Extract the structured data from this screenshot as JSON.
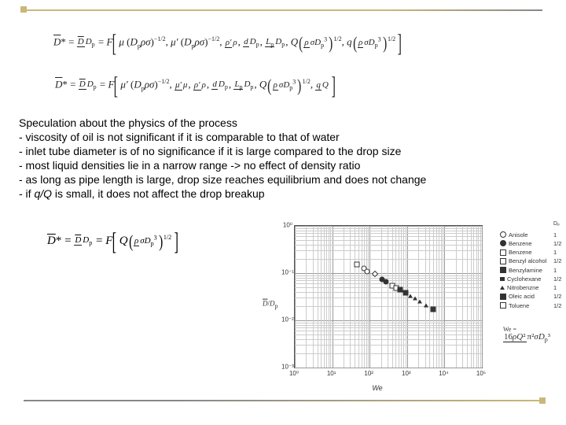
{
  "rules": {
    "top_color": "#c9b87a",
    "bottom_color": "#c9b87a"
  },
  "equations": {
    "eq1_lhs": "D̄* =",
    "eq2_lhs": "D̄* =",
    "eq3_lhs": "D̄* ="
  },
  "text": {
    "heading": "Speculation about the physics of the process",
    "l1": "- viscosity of oil is not significant if it is comparable to that of water",
    "l2": "- inlet tube diameter is of no significance if it is large compared to the drop size",
    "l3": "- most liquid densities lie in a narrow range -> no effect of density ratio",
    "l4": "  - as long as pipe length is large, drop size reaches equilibrium and does not change",
    "l5_a": "- if ",
    "l5_i": "q/Q",
    "l5_b": " is small, it does not affect the drop breakup"
  },
  "chart": {
    "type": "scatter",
    "xscale": "log",
    "yscale": "log",
    "xlim": [
      1,
      100000
    ],
    "ylim": [
      0.001,
      1
    ],
    "xticks": [
      1,
      10,
      100,
      1000,
      10000,
      100000
    ],
    "xtick_labels": [
      "10⁰",
      "10¹",
      "10²",
      "10³",
      "10⁴",
      "10⁵"
    ],
    "yticks": [
      0.001,
      0.01,
      0.1,
      1
    ],
    "ytick_labels": [
      "10⁻³",
      "10⁻²",
      "10⁻¹",
      "10⁰"
    ],
    "xlabel": "We",
    "ylabel": "D̄/Dₚ",
    "background_color": "#ffffff",
    "grid_color": "#999999",
    "minor_grid_color": "#cccccc",
    "series": [
      {
        "name": "Anisole",
        "symbol": "circle",
        "filled": false,
        "exp": "1",
        "points": [
          [
            70,
            0.125
          ],
          [
            85,
            0.11
          ]
        ]
      },
      {
        "name": "Benzene",
        "symbol": "circle",
        "filled": true,
        "exp": "1/2",
        "points": [
          [
            220,
            0.074
          ],
          [
            280,
            0.066
          ]
        ]
      },
      {
        "name": "Benzene",
        "symbol": "diamond",
        "filled": false,
        "exp": "1",
        "points": [
          [
            140,
            0.095
          ]
        ]
      },
      {
        "name": "Benzyl alcohol",
        "symbol": "square",
        "filled": false,
        "exp": "1/2",
        "points": [
          [
            400,
            0.055
          ],
          [
            520,
            0.049
          ]
        ]
      },
      {
        "name": "Benzylamine",
        "symbol": "square",
        "filled": true,
        "exp": "1",
        "points": [
          [
            650,
            0.044
          ],
          [
            900,
            0.038
          ]
        ]
      },
      {
        "name": "Cyclohexane",
        "symbol": "triangle",
        "filled": true,
        "exp": "1/2",
        "points": [
          [
            1200,
            0.033
          ],
          [
            1600,
            0.029
          ]
        ]
      },
      {
        "name": "Nitrobenzne",
        "symbol": "triangle",
        "filled": false,
        "exp": "1",
        "points": [
          [
            2200,
            0.025
          ],
          [
            3200,
            0.021
          ]
        ]
      },
      {
        "name": "Oleic acid",
        "symbol": "square",
        "filled": true,
        "exp": "1/2",
        "points": [
          [
            5000,
            0.017
          ]
        ]
      },
      {
        "name": "Toluene",
        "symbol": "square",
        "filled": false,
        "exp": "1/2",
        "points": [
          [
            45,
            0.155
          ]
        ]
      }
    ],
    "legend_header": {
      "c1": "",
      "c2": "Dₚ"
    },
    "we_formula": "We = 16ρQ² / π²σDₚ³"
  }
}
